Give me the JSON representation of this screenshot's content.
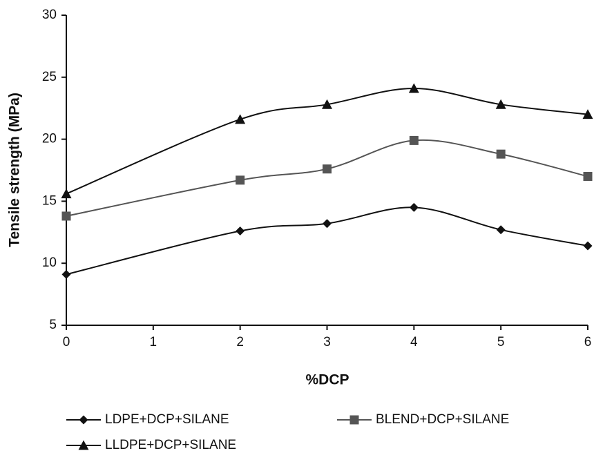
{
  "chart_data": {
    "type": "line",
    "x_label": "%DCP",
    "y_label": "Tensile strength (MPa)",
    "xlim": [
      0,
      6
    ],
    "xticks": [
      0,
      1,
      2,
      3,
      4,
      5,
      6
    ],
    "ylim": [
      5,
      30
    ],
    "yticks": [
      5,
      10,
      15,
      20,
      25,
      30
    ],
    "grid": false,
    "smooth": true,
    "legend": "bottom",
    "x": [
      0,
      2,
      3,
      4,
      5,
      6
    ],
    "series": [
      {
        "name": "LDPE+DCP+SILANE",
        "color": "#111111",
        "marker": "diamond",
        "values": [
          9.1,
          12.6,
          13.2,
          14.5,
          12.7,
          11.4
        ]
      },
      {
        "name": "BLEND+DCP+SILANE",
        "color": "#555555",
        "marker": "square",
        "values": [
          13.8,
          16.7,
          17.6,
          19.9,
          18.8,
          17.0
        ]
      },
      {
        "name": "LLDPE+DCP+SILANE",
        "color": "#111111",
        "marker": "triangle",
        "values": [
          15.6,
          21.6,
          22.8,
          24.1,
          22.8,
          22.0
        ]
      }
    ]
  }
}
